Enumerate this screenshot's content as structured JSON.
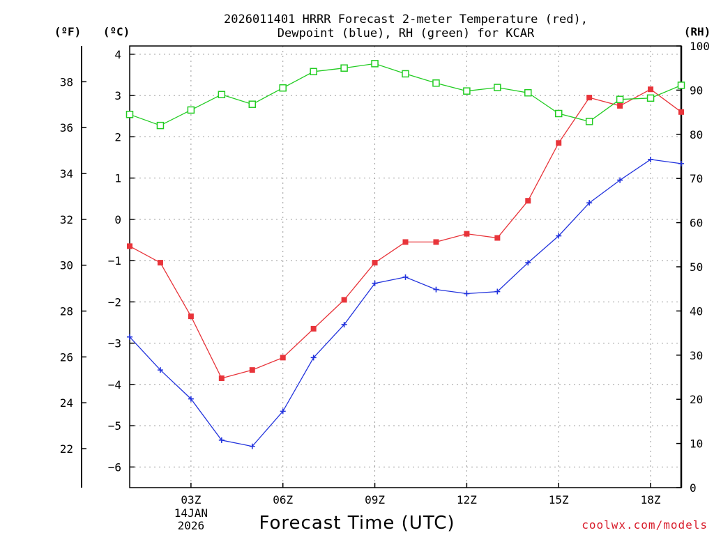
{
  "chart_data": {
    "type": "line",
    "title_lines": [
      "2026011401 HRRR Forecast 2-meter Temperature (red),",
      "Dewpoint (blue), RH (green) for KCAR"
    ],
    "xlabel": "Forecast Time (UTC)",
    "credit": "coolwx.com/models",
    "units": {
      "fahrenheit": "(ºF)",
      "celsius": "(ºC)",
      "rh": "(RH)"
    },
    "x_range": [
      1,
      19
    ],
    "x_ticks": [
      {
        "x": 3,
        "label": "03Z"
      },
      {
        "x": 6,
        "label": "06Z"
      },
      {
        "x": 9,
        "label": "09Z"
      },
      {
        "x": 12,
        "label": "12Z"
      },
      {
        "x": 15,
        "label": "15Z"
      },
      {
        "x": 18,
        "label": "18Z"
      }
    ],
    "date_label": {
      "x": 3,
      "lines": [
        "14JAN",
        "2026"
      ]
    },
    "y_celsius_range": [
      -6.5,
      4.2
    ],
    "y_celsius_ticks": [
      4,
      3,
      2,
      1,
      0,
      -1,
      -2,
      -3,
      -4,
      -5,
      -6
    ],
    "y_fahrenheit_ticks": [
      38,
      36,
      34,
      32,
      30,
      28,
      26,
      24,
      22
    ],
    "y_rh_range": [
      0,
      100
    ],
    "y_rh_ticks": [
      100,
      90,
      80,
      70,
      60,
      50,
      40,
      30,
      20,
      10,
      0
    ],
    "grid": true,
    "series": [
      {
        "name": "Temperature",
        "axis": "celsius",
        "color": "#e8343a",
        "marker": "filled-square",
        "x": [
          1,
          2,
          3,
          4,
          5,
          6,
          7,
          8,
          9,
          10,
          11,
          12,
          13,
          14,
          15,
          16,
          17,
          18,
          19
        ],
        "values": [
          -0.65,
          -1.05,
          -2.35,
          -3.85,
          -3.65,
          -3.35,
          -2.65,
          -1.95,
          -1.05,
          -0.55,
          -0.55,
          -0.35,
          -0.45,
          0.45,
          1.85,
          2.95,
          2.75,
          3.15,
          2.6
        ]
      },
      {
        "name": "Dewpoint",
        "axis": "celsius",
        "color": "#2233dd",
        "marker": "plus",
        "x": [
          1,
          2,
          3,
          4,
          5,
          6,
          7,
          8,
          9,
          10,
          11,
          12,
          13,
          14,
          15,
          16,
          17,
          18,
          19
        ],
        "values": [
          -2.85,
          -3.65,
          -4.35,
          -5.35,
          -5.5,
          -4.65,
          -3.35,
          -2.55,
          -1.55,
          -1.4,
          -1.7,
          -1.8,
          -1.75,
          -1.05,
          -0.4,
          0.4,
          0.95,
          1.45,
          1.35
        ]
      },
      {
        "name": "RH",
        "axis": "rh",
        "color": "#22cc22",
        "marker": "open-square",
        "x": [
          1,
          2,
          3,
          4,
          5,
          6,
          7,
          8,
          9,
          10,
          11,
          12,
          13,
          14,
          15,
          16,
          17,
          18,
          19
        ],
        "values": [
          84.5,
          82,
          85.5,
          89,
          86.8,
          90.5,
          94.2,
          95,
          96,
          93.7,
          91.6,
          89.8,
          90.6,
          89.4,
          84.7,
          82.9,
          87.9,
          88.2,
          91.1
        ]
      }
    ]
  }
}
